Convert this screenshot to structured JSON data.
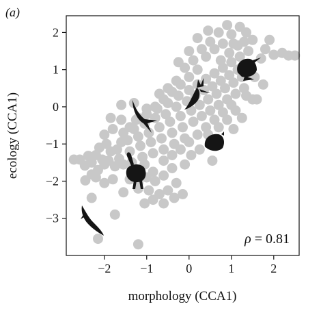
{
  "chart_data": {
    "type": "scatter",
    "panel_label": "(a)",
    "xlabel": "morphology (CCA1)",
    "ylabel": "ecology (CCA1)",
    "xlim": [
      -2.9,
      2.6
    ],
    "ylim": [
      -4.0,
      2.45
    ],
    "x_ticks": [
      -2,
      -1,
      0,
      1,
      2
    ],
    "y_ticks": [
      -3,
      -2,
      -1,
      0,
      1,
      2
    ],
    "x_tick_labels": [
      "−2",
      "−1",
      "0",
      "1",
      "2"
    ],
    "y_tick_labels": [
      "−3",
      "−2",
      "−1",
      "0",
      "1",
      "2"
    ],
    "annotation": {
      "symbol": "ρ",
      "text": " = 0.81"
    },
    "point_color": "#c8c8c8",
    "points": [
      [
        -2.72,
        -1.42
      ],
      [
        -2.58,
        -1.42
      ],
      [
        -2.46,
        -1.58
      ],
      [
        -2.38,
        -1.32
      ],
      [
        -2.3,
        -1.5
      ],
      [
        -2.45,
        -1.98
      ],
      [
        -2.3,
        -1.82
      ],
      [
        -2.15,
        -1.7
      ],
      [
        -2.2,
        -1.3
      ],
      [
        -2.05,
        -1.42
      ],
      [
        -2.0,
        -1.55
      ],
      [
        -2.12,
        -1.1
      ],
      [
        -1.95,
        -1.0
      ],
      [
        -1.85,
        -1.2
      ],
      [
        -1.9,
        -1.45
      ],
      [
        -1.75,
        -1.6
      ],
      [
        -1.65,
        -1.4
      ],
      [
        -1.7,
        -1.15
      ],
      [
        -1.6,
        -0.95
      ],
      [
        -1.55,
        -0.7
      ],
      [
        -1.45,
        -0.9
      ],
      [
        -1.4,
        -1.2
      ],
      [
        -1.35,
        -1.5
      ],
      [
        -1.3,
        -0.6
      ],
      [
        -1.25,
        -0.35
      ],
      [
        -1.2,
        -0.8
      ],
      [
        -1.15,
        -1.05
      ],
      [
        -1.1,
        -1.35
      ],
      [
        -1.05,
        -0.45
      ],
      [
        -1.0,
        -0.2
      ],
      [
        -0.95,
        -0.7
      ],
      [
        -0.9,
        -0.95
      ],
      [
        -0.85,
        -1.25
      ],
      [
        -0.8,
        -0.3
      ],
      [
        -0.75,
        -0.05
      ],
      [
        -0.7,
        -0.55
      ],
      [
        -0.65,
        -0.85
      ],
      [
        -0.6,
        -1.15
      ],
      [
        -0.55,
        -0.2
      ],
      [
        -0.5,
        0.1
      ],
      [
        -0.45,
        -0.4
      ],
      [
        -0.4,
        -0.7
      ],
      [
        -0.35,
        -1.0
      ],
      [
        -0.3,
        0.0
      ],
      [
        -0.25,
        0.3
      ],
      [
        -0.2,
        -0.25
      ],
      [
        -0.15,
        -0.55
      ],
      [
        -0.1,
        -0.85
      ],
      [
        -0.05,
        0.15
      ],
      [
        0.0,
        0.45
      ],
      [
        0.05,
        -0.1
      ],
      [
        0.1,
        -0.4
      ],
      [
        0.15,
        0.3
      ],
      [
        0.2,
        0.6
      ],
      [
        0.25,
        0.05
      ],
      [
        0.3,
        -0.25
      ],
      [
        0.35,
        0.45
      ],
      [
        0.4,
        0.75
      ],
      [
        0.45,
        0.2
      ],
      [
        0.5,
        -0.1
      ],
      [
        0.55,
        0.55
      ],
      [
        0.6,
        0.9
      ],
      [
        0.65,
        0.35
      ],
      [
        0.7,
        0.05
      ],
      [
        0.75,
        0.7
      ],
      [
        0.8,
        1.05
      ],
      [
        0.85,
        0.5
      ],
      [
        0.9,
        0.2
      ],
      [
        0.95,
        0.85
      ],
      [
        1.0,
        1.2
      ],
      [
        1.05,
        0.65
      ],
      [
        1.1,
        0.35
      ],
      [
        1.15,
        1.0
      ],
      [
        1.2,
        1.35
      ],
      [
        1.25,
        0.8
      ],
      [
        1.3,
        0.5
      ],
      [
        1.35,
        1.15
      ],
      [
        1.4,
        1.5
      ],
      [
        1.45,
        0.95
      ],
      [
        1.5,
        0.2
      ],
      [
        1.7,
        1.3
      ],
      [
        1.8,
        1.55
      ],
      [
        2.0,
        1.4
      ],
      [
        2.2,
        1.45
      ],
      [
        2.35,
        1.38
      ],
      [
        2.5,
        1.38
      ],
      [
        1.9,
        1.8
      ],
      [
        1.5,
        1.8
      ],
      [
        1.2,
        2.15
      ],
      [
        1.0,
        1.95
      ],
      [
        0.8,
        1.7
      ],
      [
        0.6,
        1.55
      ],
      [
        0.4,
        1.35
      ],
      [
        0.2,
        1.0
      ],
      [
        0.0,
        0.8
      ],
      [
        -0.2,
        0.6
      ],
      [
        -0.4,
        0.4
      ],
      [
        -0.6,
        0.2
      ],
      [
        -0.8,
        0.0
      ],
      [
        -1.0,
        -0.05
      ],
      [
        -1.2,
        -0.3
      ],
      [
        -1.4,
        -0.55
      ],
      [
        -0.5,
        0.5
      ],
      [
        -0.7,
        0.35
      ],
      [
        -0.3,
        0.7
      ],
      [
        -0.1,
        1.05
      ],
      [
        0.1,
        1.25
      ],
      [
        0.3,
        1.55
      ],
      [
        0.5,
        1.75
      ],
      [
        0.7,
        2.0
      ],
      [
        1.35,
        2.0
      ],
      [
        1.15,
        1.65
      ],
      [
        0.95,
        1.45
      ],
      [
        0.75,
        1.25
      ],
      [
        -1.55,
        -1.55
      ],
      [
        -1.3,
        -1.75
      ],
      [
        -1.05,
        -1.55
      ],
      [
        -0.85,
        -1.75
      ],
      [
        -0.6,
        -1.45
      ],
      [
        -0.4,
        -1.3
      ],
      [
        -0.2,
        -1.15
      ],
      [
        0.0,
        -0.95
      ],
      [
        0.2,
        -0.75
      ],
      [
        0.4,
        -0.55
      ],
      [
        0.6,
        -0.35
      ],
      [
        0.8,
        -0.15
      ],
      [
        1.0,
        0.05
      ],
      [
        -1.0,
        -1.9
      ],
      [
        -0.8,
        -2.0
      ],
      [
        -0.6,
        -1.85
      ],
      [
        -0.4,
        -1.65
      ],
      [
        -1.2,
        -2.05
      ],
      [
        -1.4,
        -1.95
      ],
      [
        -0.3,
        -2.05
      ],
      [
        -1.55,
        -2.3
      ],
      [
        -1.2,
        -2.2
      ],
      [
        -0.95,
        -2.25
      ],
      [
        -0.7,
        -2.35
      ],
      [
        -0.5,
        -2.25
      ],
      [
        -0.85,
        -2.5
      ],
      [
        -1.05,
        -2.6
      ],
      [
        -0.6,
        -2.6
      ],
      [
        -0.35,
        -2.45
      ],
      [
        -0.15,
        -2.35
      ],
      [
        -2.2,
        -1.9
      ],
      [
        -2.0,
        -2.05
      ],
      [
        -1.8,
        -1.95
      ],
      [
        -2.3,
        -2.45
      ],
      [
        -1.75,
        -2.9
      ],
      [
        -1.2,
        -3.7
      ],
      [
        -2.15,
        -3.55
      ],
      [
        0.55,
        -1.45
      ],
      [
        1.6,
        0.2
      ],
      [
        1.75,
        0.6
      ],
      [
        1.55,
        0.8
      ],
      [
        1.35,
        0.3
      ],
      [
        1.1,
        -0.1
      ],
      [
        0.9,
        -0.35
      ],
      [
        0.7,
        -0.55
      ],
      [
        0.45,
        -0.75
      ],
      [
        1.25,
        -0.3
      ],
      [
        0.55,
        -0.95
      ],
      [
        0.25,
        -1.15
      ],
      [
        0.05,
        -1.3
      ],
      [
        -0.1,
        -1.55
      ],
      [
        1.05,
        -0.6
      ],
      [
        -1.6,
        -0.35
      ],
      [
        -1.8,
        -0.6
      ],
      [
        -2.0,
        -0.75
      ],
      [
        -1.85,
        -0.3
      ],
      [
        -1.6,
        0.05
      ],
      [
        -1.3,
        0.1
      ],
      [
        0.0,
        1.5
      ],
      [
        0.2,
        1.85
      ],
      [
        -0.25,
        1.2
      ],
      [
        0.45,
        2.05
      ],
      [
        0.9,
        2.2
      ],
      [
        1.05,
        1.7
      ],
      [
        1.3,
        1.75
      ]
    ]
  }
}
